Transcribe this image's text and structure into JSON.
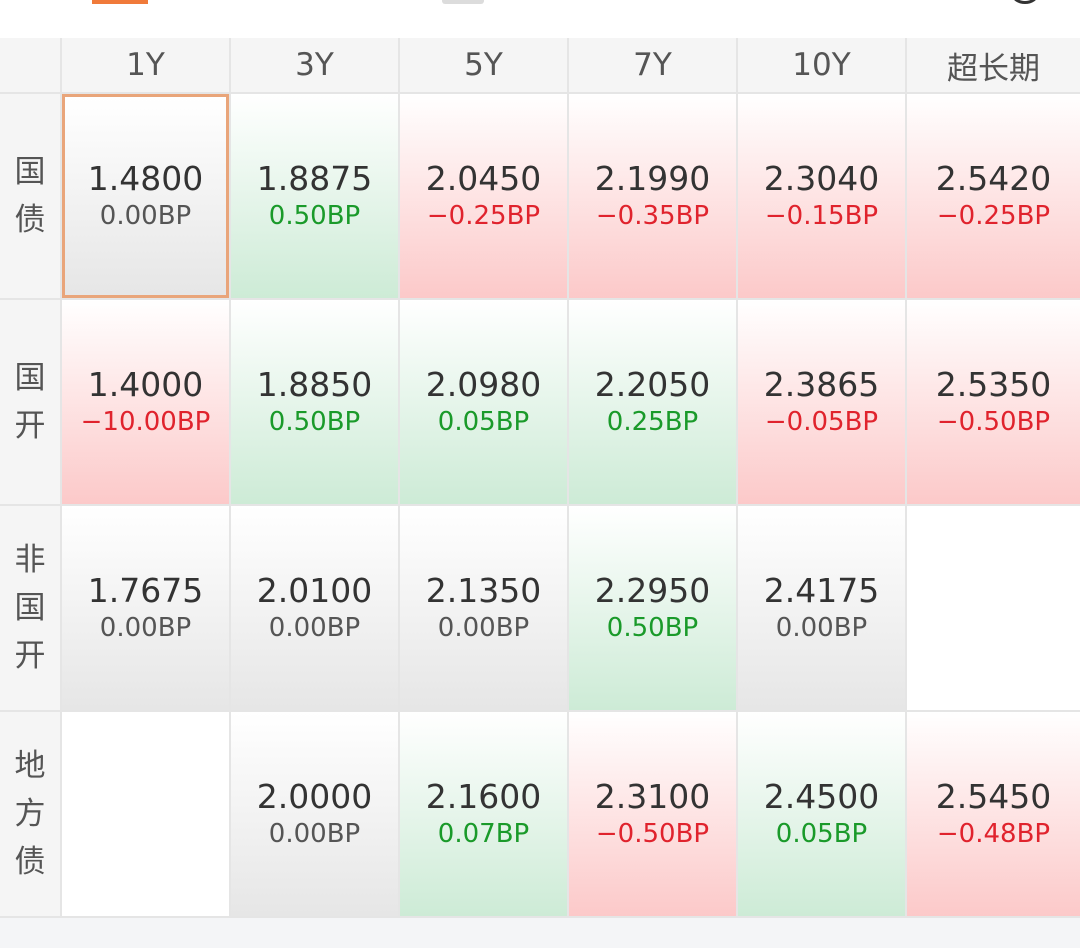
{
  "header": {
    "columns": [
      "1Y",
      "3Y",
      "5Y",
      "7Y",
      "10Y",
      "超长期"
    ]
  },
  "colors": {
    "up": "#e0232d",
    "down": "#1a9a2a",
    "flat": "#555555",
    "selected_border": "#e9a57a",
    "accent": "#f07a3a"
  },
  "rows": [
    {
      "label": [
        "国",
        "债"
      ],
      "cells": [
        {
          "rate": "1.4800",
          "change": "0.00BP",
          "trend": "neutral",
          "selected": true
        },
        {
          "rate": "1.8875",
          "change": "0.50BP",
          "trend": "green"
        },
        {
          "rate": "2.0450",
          "change": "−0.25BP",
          "trend": "red"
        },
        {
          "rate": "2.1990",
          "change": "−0.35BP",
          "trend": "red"
        },
        {
          "rate": "2.3040",
          "change": "−0.15BP",
          "trend": "red"
        },
        {
          "rate": "2.5420",
          "change": "−0.25BP",
          "trend": "red"
        }
      ]
    },
    {
      "label": [
        "国",
        "开"
      ],
      "cells": [
        {
          "rate": "1.4000",
          "change": "−10.00BP",
          "trend": "red"
        },
        {
          "rate": "1.8850",
          "change": "0.50BP",
          "trend": "green"
        },
        {
          "rate": "2.0980",
          "change": "0.05BP",
          "trend": "green"
        },
        {
          "rate": "2.2050",
          "change": "0.25BP",
          "trend": "green"
        },
        {
          "rate": "2.3865",
          "change": "−0.05BP",
          "trend": "red"
        },
        {
          "rate": "2.5350",
          "change": "−0.50BP",
          "trend": "red"
        }
      ]
    },
    {
      "label": [
        "非",
        "国",
        "开"
      ],
      "cells": [
        {
          "rate": "1.7675",
          "change": "0.00BP",
          "trend": "neutral"
        },
        {
          "rate": "2.0100",
          "change": "0.00BP",
          "trend": "neutral"
        },
        {
          "rate": "2.1350",
          "change": "0.00BP",
          "trend": "neutral"
        },
        {
          "rate": "2.2950",
          "change": "0.50BP",
          "trend": "green"
        },
        {
          "rate": "2.4175",
          "change": "0.00BP",
          "trend": "neutral"
        },
        {
          "rate": "",
          "change": "",
          "trend": "empty"
        }
      ]
    },
    {
      "label": [
        "地",
        "方",
        "债"
      ],
      "cells": [
        {
          "rate": "",
          "change": "",
          "trend": "empty"
        },
        {
          "rate": "2.0000",
          "change": "0.00BP",
          "trend": "neutral"
        },
        {
          "rate": "2.1600",
          "change": "0.07BP",
          "trend": "green"
        },
        {
          "rate": "2.3100",
          "change": "−0.50BP",
          "trend": "red"
        },
        {
          "rate": "2.4500",
          "change": "0.05BP",
          "trend": "green"
        },
        {
          "rate": "2.5450",
          "change": "−0.48BP",
          "trend": "red"
        }
      ]
    }
  ]
}
